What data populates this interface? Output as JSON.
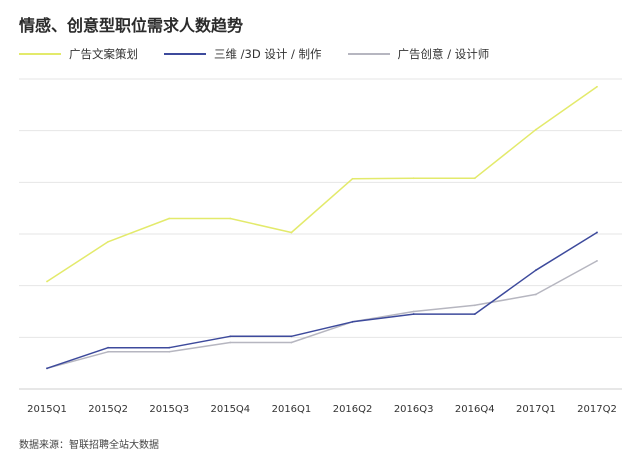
{
  "title": "情感、创意型职位需求人数趋势",
  "source": "数据来源：智联招聘全站大数据",
  "colors": {
    "gridline": "#e6e6e6",
    "axis": "#cfcfcf",
    "series": [
      "#e3ea6b",
      "#3d4a9c",
      "#b6b6c0"
    ]
  },
  "chart_data": {
    "type": "line",
    "title": "情感、创意型职位需求人数趋势",
    "xlabel": "",
    "ylabel": "",
    "y_tick_labels_shown": false,
    "grid": true,
    "legend_position": "top-left",
    "ylim": [
      0,
      6
    ],
    "categories": [
      "2015Q1",
      "2015Q2",
      "2015Q3",
      "2015Q4",
      "2016Q1",
      "2016Q2",
      "2016Q3",
      "2016Q4",
      "2017Q1",
      "2017Q2"
    ],
    "series": [
      {
        "name": "广告文案策划",
        "values": [
          2.08,
          2.85,
          3.3,
          3.3,
          3.03,
          4.07,
          4.08,
          4.08,
          5.02,
          5.85
        ]
      },
      {
        "name": "三维 /3D 设计 / 制作",
        "values": [
          0.4,
          0.8,
          0.8,
          1.02,
          1.02,
          1.3,
          1.45,
          1.45,
          2.3,
          3.03
        ]
      },
      {
        "name": "广告创意 / 设计师",
        "values": [
          0.4,
          0.72,
          0.72,
          0.9,
          0.9,
          1.3,
          1.5,
          1.62,
          1.83,
          2.48
        ]
      }
    ]
  }
}
